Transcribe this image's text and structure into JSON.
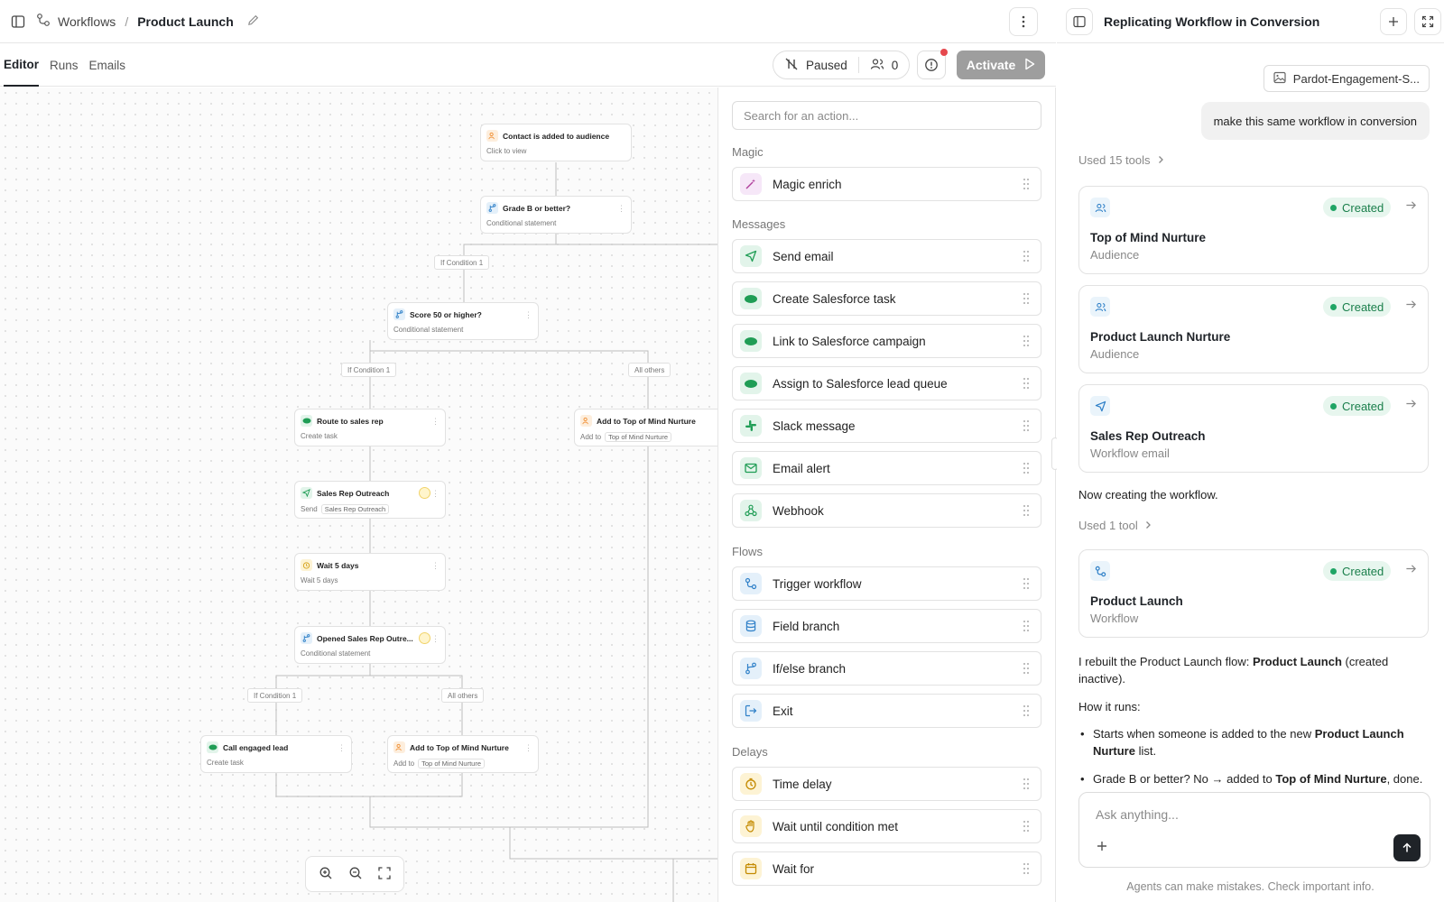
{
  "header": {
    "breadcrumb_root": "Workflows",
    "breadcrumb_sep": "/",
    "breadcrumb_current": "Product Launch"
  },
  "tabs": [
    {
      "label": "Editor",
      "active": true
    },
    {
      "label": "Runs",
      "active": false
    },
    {
      "label": "Emails",
      "active": false
    }
  ],
  "toolbar": {
    "status_label": "Paused",
    "member_count": "0",
    "activate_label": "Activate"
  },
  "canvas": {
    "nodes": [
      {
        "title": "Contact is added to audience",
        "sub": "Click to view",
        "icon": "users-icon",
        "color": "#f08c2e"
      },
      {
        "title": "Grade B or better?",
        "sub": "Conditional statement",
        "icon": "branch-icon",
        "color": "#2f80c8"
      },
      {
        "title": "Score 50 or higher?",
        "sub": "Conditional statement",
        "icon": "branch-icon",
        "color": "#2f80c8"
      },
      {
        "title": "Route to sales rep",
        "sub": "Create task",
        "icon": "salesforce-icon",
        "color": "#1f9d55"
      },
      {
        "title": "Add to Top of Mind Nurture",
        "sub_prefix": "Add to",
        "sub_tag": "Top of Mind Nurture",
        "icon": "users-icon",
        "color": "#f08c2e"
      },
      {
        "title": "Sales Rep Outreach",
        "sub_prefix": "Send",
        "sub_tag": "Sales Rep Outreach",
        "icon": "send-icon",
        "color": "#1f9d55"
      },
      {
        "title": "Wait 5 days",
        "sub": "Wait 5 days",
        "icon": "timer-icon",
        "color": "#d4a017"
      },
      {
        "title": "Opened Sales Rep Outre...",
        "sub": "Conditional statement",
        "icon": "branch-icon",
        "color": "#2f80c8"
      },
      {
        "title": "Call engaged lead",
        "sub": "Create task",
        "icon": "salesforce-icon",
        "color": "#1f9d55"
      },
      {
        "title": "Add to Top of Mind Nurture",
        "sub_prefix": "Add to",
        "sub_tag": "Top of Mind Nurture",
        "icon": "users-icon",
        "color": "#f08c2e"
      }
    ],
    "edge_labels": [
      "If Condition 1",
      "If Condition 1",
      "All others",
      "If Condition 1",
      "All others"
    ]
  },
  "actions": {
    "search_placeholder": "Search for an action...",
    "groups": [
      {
        "title": "Magic",
        "items": [
          {
            "label": "Magic enrich",
            "icon": "wand-icon"
          }
        ]
      },
      {
        "title": "Messages",
        "items": [
          {
            "label": "Send email",
            "icon": "send-icon"
          },
          {
            "label": "Create Salesforce task",
            "icon": "salesforce-icon"
          },
          {
            "label": "Link to Salesforce campaign",
            "icon": "salesforce-icon"
          },
          {
            "label": "Assign to Salesforce lead queue",
            "icon": "salesforce-icon"
          },
          {
            "label": "Slack message",
            "icon": "slack-icon"
          },
          {
            "label": "Email alert",
            "icon": "mail-icon"
          },
          {
            "label": "Webhook",
            "icon": "webhook-icon"
          }
        ]
      },
      {
        "title": "Flows",
        "items": [
          {
            "label": "Trigger workflow",
            "icon": "workflow-icon"
          },
          {
            "label": "Field branch",
            "icon": "database-icon"
          },
          {
            "label": "If/else branch",
            "icon": "branch-icon"
          },
          {
            "label": "Exit",
            "icon": "exit-icon"
          }
        ]
      },
      {
        "title": "Delays",
        "items": [
          {
            "label": "Time delay",
            "icon": "timer-icon"
          },
          {
            "label": "Wait until condition met",
            "icon": "hand-icon"
          },
          {
            "label": "Wait for",
            "icon": "calendar-icon"
          }
        ]
      }
    ]
  },
  "chat": {
    "title": "Replicating Workflow in Conversion",
    "attachment": "Pardot-Engagement-S...",
    "user_message": "make this same workflow in conversion",
    "tools_used_1": "Used 15 tools",
    "cards": [
      {
        "title": "Top of Mind Nurture",
        "sub": "Audience",
        "status": "Created",
        "icon": "users-icon"
      },
      {
        "title": "Product Launch Nurture",
        "sub": "Audience",
        "status": "Created",
        "icon": "users-icon"
      },
      {
        "title": "Sales Rep Outreach",
        "sub": "Workflow email",
        "status": "Created",
        "icon": "send-icon"
      },
      {
        "title": "Product Launch",
        "sub": "Workflow",
        "status": "Created",
        "icon": "workflow-icon"
      }
    ],
    "now_creating": "Now creating the workflow.",
    "tools_used_2": "Used 1 tool",
    "summary_prefix": "I rebuilt the Product Launch flow: ",
    "summary_bold": "Product Launch",
    "summary_suffix": " (created inactive).",
    "how_it_runs": "How it runs:",
    "bullet_1_prefix": "Starts when someone is added to the new ",
    "bullet_1_bold": "Product Launch Nurture",
    "bullet_1_suffix": " list.",
    "bullet_2_prefix": "Grade B or better? No → added to ",
    "bullet_2_bold": "Top of Mind Nurture",
    "bullet_2_suffix": ", done.",
    "composer_placeholder": "Ask anything...",
    "disclaimer": "Agents can make mistakes. Check important info."
  }
}
